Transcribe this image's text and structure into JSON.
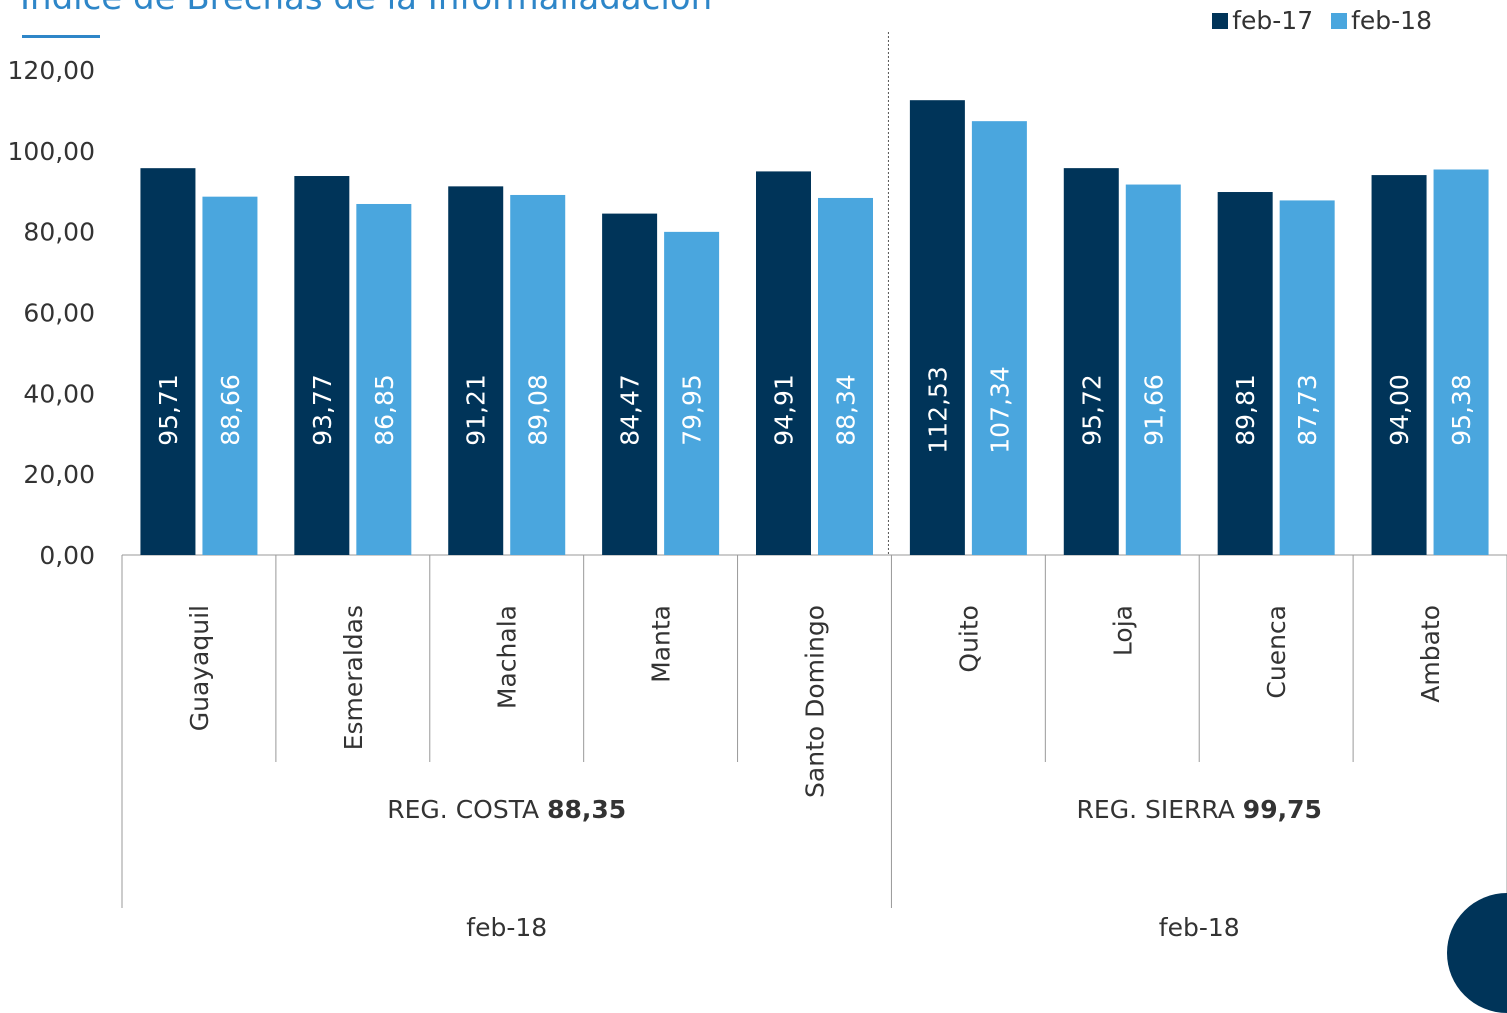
{
  "chart_data": {
    "type": "bar",
    "title": "Índice de Brechas de la Informaliadación",
    "xlabel": "",
    "ylabel": "",
    "ylim": [
      0,
      120
    ],
    "yticks": [
      "0,00",
      "20,00",
      "40,00",
      "60,00",
      "80,00",
      "100,00",
      "120,00"
    ],
    "categories": [
      "Guayaquil",
      "Esmeraldas",
      "Machala",
      "Manta",
      "Santo Domingo",
      "Quito",
      "Loja",
      "Cuenca",
      "Ambato"
    ],
    "series": [
      {
        "name": "feb-17",
        "color": "#003459",
        "values": [
          95.71,
          93.77,
          91.21,
          84.47,
          94.91,
          112.53,
          95.72,
          89.81,
          94.0
        ],
        "labels": [
          "95,71",
          "93,77",
          "91,21",
          "84,47",
          "94,91",
          "112,53",
          "95,72",
          "89,81",
          "94,00"
        ]
      },
      {
        "name": "feb-18",
        "color": "#4aa6de",
        "values": [
          88.66,
          86.85,
          89.08,
          79.95,
          88.34,
          107.34,
          91.66,
          87.73,
          95.38
        ],
        "labels": [
          "88,66",
          "86,85",
          "89,08",
          "79,95",
          "88,34",
          "107,34",
          "91,66",
          "87,73",
          "95,38"
        ]
      }
    ],
    "groups": [
      {
        "label": "REG. COSTA",
        "value": "88,35",
        "period": "feb-18",
        "start": 0,
        "end": 4
      },
      {
        "label": "REG. SIERRA",
        "value": "99,75",
        "period": "feb-18",
        "start": 5,
        "end": 8
      }
    ],
    "legend_position": "top-right",
    "grid": false
  }
}
